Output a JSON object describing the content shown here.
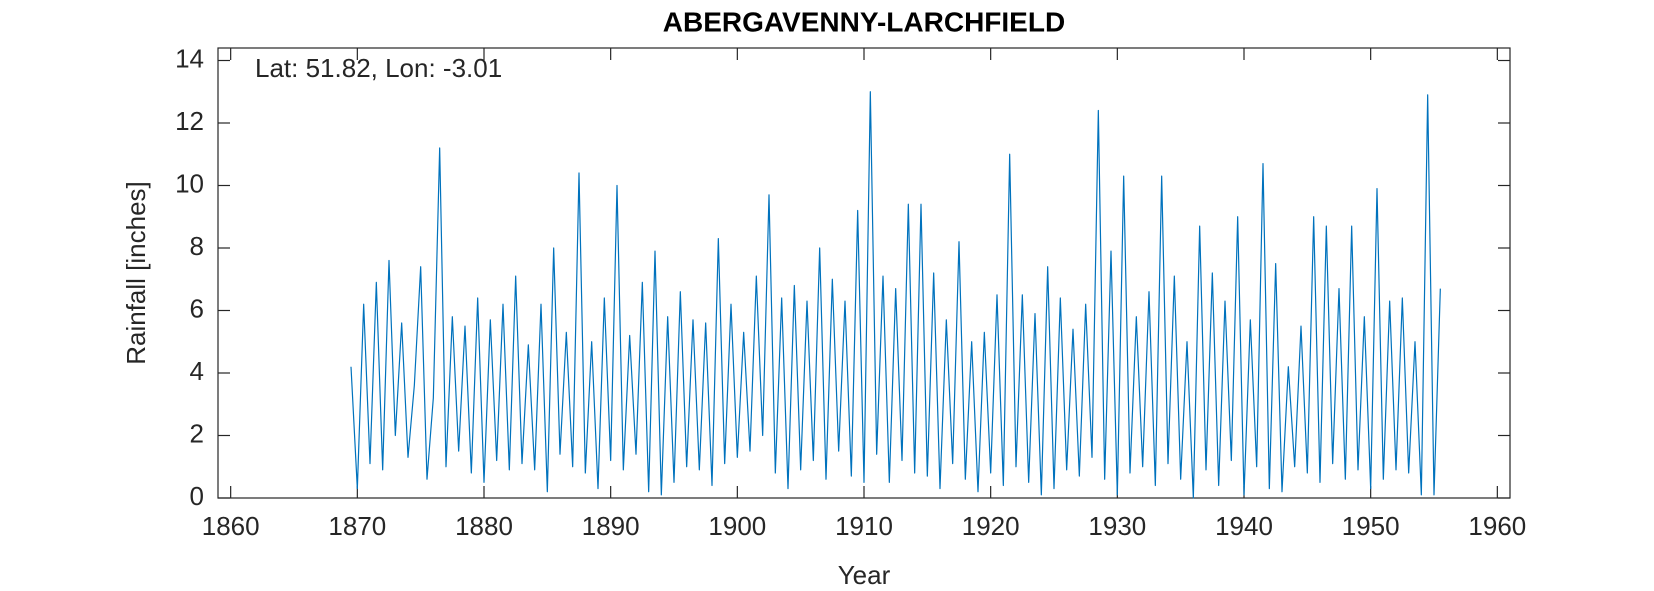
{
  "chart_data": {
    "type": "line",
    "title": "ABERGAVENNY-LARCHFIELD",
    "annotation": "Lat: 51.82, Lon: -3.01",
    "x_label": "Year",
    "y_label": "Rainfall [inches]",
    "xlim": [
      1859,
      1961
    ],
    "ylim": [
      0,
      14.4
    ],
    "xticks": [
      1860,
      1870,
      1880,
      1890,
      1900,
      1910,
      1920,
      1930,
      1940,
      1950,
      1960
    ],
    "yticks": [
      0,
      2,
      4,
      6,
      8,
      10,
      12,
      14
    ],
    "grid": false,
    "series": [
      {
        "name": "Rainfall",
        "color": "#0072bd",
        "x": [
          1869.5,
          1870,
          1870.5,
          1871,
          1871.5,
          1872,
          1872.5,
          1873,
          1873.5,
          1874,
          1874.5,
          1875,
          1875.5,
          1876,
          1876.5,
          1877,
          1877.5,
          1878,
          1878.5,
          1879,
          1879.5,
          1880,
          1880.5,
          1881,
          1881.5,
          1882,
          1882.5,
          1883,
          1883.5,
          1884,
          1884.5,
          1885,
          1885.5,
          1886,
          1886.5,
          1887,
          1887.5,
          1888,
          1888.5,
          1889,
          1889.5,
          1890,
          1890.5,
          1891,
          1891.5,
          1892,
          1892.5,
          1893,
          1893.5,
          1894,
          1894.5,
          1895,
          1895.5,
          1896,
          1896.5,
          1897,
          1897.5,
          1898,
          1898.5,
          1899,
          1899.5,
          1900,
          1900.5,
          1901,
          1901.5,
          1902,
          1902.5,
          1903,
          1903.5,
          1904,
          1904.5,
          1905,
          1905.5,
          1906,
          1906.5,
          1907,
          1907.5,
          1908,
          1908.5,
          1909,
          1909.5,
          1910,
          1910.5,
          1911,
          1911.5,
          1912,
          1912.5,
          1913,
          1913.5,
          1914,
          1914.5,
          1915,
          1915.5,
          1916,
          1916.5,
          1917,
          1917.5,
          1918,
          1918.5,
          1919,
          1919.5,
          1920,
          1920.5,
          1921,
          1921.5,
          1922,
          1922.5,
          1923,
          1923.5,
          1924,
          1924.5,
          1925,
          1925.5,
          1926,
          1926.5,
          1927,
          1927.5,
          1928,
          1928.5,
          1929,
          1929.5,
          1930,
          1930.5,
          1931,
          1931.5,
          1932,
          1932.5,
          1933,
          1933.5,
          1934,
          1934.5,
          1935,
          1935.5,
          1936,
          1936.5,
          1937,
          1937.5,
          1938,
          1938.5,
          1939,
          1939.5,
          1940,
          1940.5,
          1941,
          1941.5,
          1942,
          1942.5,
          1943,
          1943.5,
          1944,
          1944.5,
          1945,
          1945.5,
          1946,
          1946.5,
          1947,
          1947.5,
          1948,
          1948.5,
          1949,
          1949.5,
          1950,
          1950.5,
          1951,
          1951.5,
          1952,
          1952.5,
          1953,
          1953.5,
          1954,
          1954.5,
          1955,
          1955.5
        ],
        "values": [
          4.2,
          0.3,
          6.2,
          1.1,
          6.9,
          0.9,
          7.6,
          2.0,
          5.6,
          1.3,
          3.6,
          7.4,
          0.6,
          3.2,
          11.2,
          1.0,
          5.8,
          1.5,
          5.5,
          0.8,
          6.4,
          0.5,
          5.7,
          1.2,
          6.2,
          0.9,
          7.1,
          1.1,
          4.9,
          0.9,
          6.2,
          0.2,
          8.0,
          1.4,
          5.3,
          1.0,
          10.4,
          0.8,
          5.0,
          0.3,
          6.4,
          1.2,
          10.0,
          0.9,
          5.2,
          1.4,
          6.9,
          0.2,
          7.9,
          0.1,
          5.8,
          0.5,
          6.6,
          1.0,
          5.7,
          0.9,
          5.6,
          0.4,
          8.3,
          1.1,
          6.2,
          1.3,
          5.3,
          1.5,
          7.1,
          2.0,
          9.7,
          0.8,
          6.4,
          0.3,
          6.8,
          0.9,
          6.3,
          1.2,
          8.0,
          0.6,
          7.0,
          1.5,
          6.3,
          0.7,
          9.2,
          0.5,
          13.0,
          1.4,
          7.1,
          0.5,
          6.7,
          1.2,
          9.4,
          0.8,
          9.4,
          0.7,
          7.2,
          0.3,
          5.7,
          1.1,
          8.2,
          0.6,
          5.0,
          0.2,
          5.3,
          0.8,
          6.5,
          0.4,
          11.0,
          1.0,
          6.5,
          0.5,
          5.9,
          0.1,
          7.4,
          0.3,
          6.4,
          0.9,
          5.4,
          0.7,
          6.2,
          1.3,
          12.4,
          0.6,
          7.9,
          0.1,
          10.3,
          0.8,
          5.8,
          1.0,
          6.6,
          0.4,
          10.3,
          1.1,
          7.1,
          0.6,
          5.0,
          0.0,
          8.7,
          0.9,
          7.2,
          0.4,
          6.3,
          1.2,
          9.0,
          0.1,
          5.7,
          1.0,
          10.7,
          0.3,
          7.5,
          0.2,
          4.2,
          1.0,
          5.5,
          0.8,
          9.0,
          0.5,
          8.7,
          1.1,
          6.7,
          0.6,
          8.7,
          0.9,
          5.8,
          0.3,
          9.9,
          0.6,
          6.3,
          0.9,
          6.4,
          0.8,
          5.0,
          0.1,
          12.9,
          0.1,
          6.7
        ]
      }
    ]
  }
}
